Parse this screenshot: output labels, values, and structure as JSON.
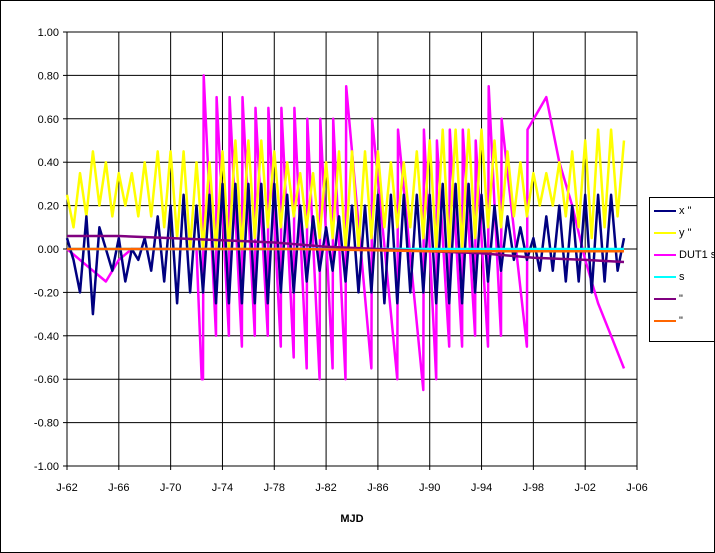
{
  "chart_data": {
    "type": "line",
    "title": "",
    "xlabel": "MJD",
    "ylabel": "",
    "x_ticks": [
      "J-62",
      "J-66",
      "J-70",
      "J-74",
      "J-78",
      "J-82",
      "J-86",
      "J-90",
      "J-94",
      "J-98",
      "J-02",
      "J-06"
    ],
    "x_range": [
      1962,
      2006
    ],
    "y_ticks": [
      "1.00",
      "0.80",
      "0.60",
      "0.40",
      "0.20",
      "0.00",
      "-0.20",
      "-0.40",
      "-0.60",
      "-0.80",
      "-1.00"
    ],
    "ylim": [
      -1.0,
      1.0
    ],
    "grid": "horizontal and vertical",
    "legend_position": "right",
    "series": [
      {
        "name": "x \"",
        "color": "#000080",
        "x": [
          1962.0,
          1962.5,
          1963.0,
          1963.5,
          1964.0,
          1964.5,
          1965.0,
          1965.5,
          1966.0,
          1966.5,
          1967.0,
          1967.5,
          1968.0,
          1968.5,
          1969.0,
          1969.5,
          1970.0,
          1970.5,
          1971.0,
          1971.5,
          1972.0,
          1972.5,
          1973.0,
          1973.5,
          1974.0,
          1974.5,
          1975.0,
          1975.5,
          1976.0,
          1976.5,
          1977.0,
          1977.5,
          1978.0,
          1978.5,
          1979.0,
          1979.5,
          1980.0,
          1980.5,
          1981.0,
          1981.5,
          1982.0,
          1982.5,
          1983.0,
          1983.5,
          1984.0,
          1984.5,
          1985.0,
          1985.5,
          1986.0,
          1986.5,
          1987.0,
          1987.5,
          1988.0,
          1988.5,
          1989.0,
          1989.5,
          1990.0,
          1990.5,
          1991.0,
          1991.5,
          1992.0,
          1992.5,
          1993.0,
          1993.5,
          1994.0,
          1994.5,
          1995.0,
          1995.5,
          1996.0,
          1996.5,
          1997.0,
          1997.5,
          1998.0,
          1998.5,
          1999.0,
          1999.5,
          2000.0,
          2000.5,
          2001.0,
          2001.5,
          2002.0,
          2002.5,
          2003.0,
          2003.5,
          2004.0,
          2004.5,
          2005.0
        ],
        "values": [
          0.05,
          -0.05,
          -0.2,
          0.15,
          -0.3,
          0.1,
          0.0,
          -0.1,
          0.05,
          -0.15,
          0.0,
          -0.05,
          0.05,
          -0.1,
          0.15,
          -0.15,
          0.2,
          -0.25,
          0.25,
          -0.2,
          0.2,
          -0.2,
          0.25,
          -0.25,
          0.3,
          -0.25,
          0.3,
          -0.25,
          0.3,
          -0.25,
          0.3,
          -0.25,
          0.3,
          -0.2,
          0.25,
          -0.2,
          0.2,
          -0.15,
          0.15,
          -0.1,
          0.1,
          -0.1,
          0.15,
          -0.15,
          0.2,
          -0.2,
          0.2,
          -0.2,
          0.25,
          -0.25,
          0.25,
          -0.25,
          0.25,
          -0.2,
          0.25,
          -0.2,
          0.25,
          -0.25,
          0.3,
          -0.25,
          0.3,
          -0.25,
          0.3,
          -0.2,
          0.25,
          -0.15,
          0.2,
          -0.1,
          0.15,
          -0.05,
          0.1,
          -0.05,
          0.05,
          -0.1,
          0.15,
          -0.1,
          0.2,
          -0.15,
          0.2,
          -0.15,
          0.25,
          -0.2,
          0.25,
          -0.15,
          0.25,
          -0.1,
          0.05
        ]
      },
      {
        "name": "y \"",
        "color": "#ffff00",
        "x": [
          1962.0,
          1962.5,
          1963.0,
          1963.5,
          1964.0,
          1964.5,
          1965.0,
          1965.5,
          1966.0,
          1966.5,
          1967.0,
          1967.5,
          1968.0,
          1968.5,
          1969.0,
          1969.5,
          1970.0,
          1970.5,
          1971.0,
          1971.5,
          1972.0,
          1972.5,
          1973.0,
          1973.5,
          1974.0,
          1974.5,
          1975.0,
          1975.5,
          1976.0,
          1976.5,
          1977.0,
          1977.5,
          1978.0,
          1978.5,
          1979.0,
          1979.5,
          1980.0,
          1980.5,
          1981.0,
          1981.5,
          1982.0,
          1982.5,
          1983.0,
          1983.5,
          1984.0,
          1984.5,
          1985.0,
          1985.5,
          1986.0,
          1986.5,
          1987.0,
          1987.5,
          1988.0,
          1988.5,
          1989.0,
          1989.5,
          1990.0,
          1990.5,
          1991.0,
          1991.5,
          1992.0,
          1992.5,
          1993.0,
          1993.5,
          1994.0,
          1994.5,
          1995.0,
          1995.5,
          1996.0,
          1996.5,
          1997.0,
          1997.5,
          1998.0,
          1998.5,
          1999.0,
          1999.5,
          2000.0,
          2000.5,
          2001.0,
          2001.5,
          2002.0,
          2002.5,
          2003.0,
          2003.5,
          2004.0,
          2004.5,
          2005.0
        ],
        "values": [
          0.25,
          0.1,
          0.35,
          0.15,
          0.45,
          0.2,
          0.4,
          0.15,
          0.35,
          0.2,
          0.35,
          0.15,
          0.4,
          0.15,
          0.45,
          0.1,
          0.45,
          0.05,
          0.45,
          0.0,
          0.4,
          0.0,
          0.4,
          0.0,
          0.45,
          0.0,
          0.5,
          0.0,
          0.5,
          0.05,
          0.5,
          0.1,
          0.45,
          0.1,
          0.4,
          0.15,
          0.35,
          0.1,
          0.35,
          0.05,
          0.4,
          0.05,
          0.45,
          0.0,
          0.45,
          0.0,
          0.45,
          0.05,
          0.45,
          0.1,
          0.4,
          0.1,
          0.4,
          0.1,
          0.45,
          0.05,
          0.5,
          0.0,
          0.55,
          0.0,
          0.55,
          0.0,
          0.55,
          0.05,
          0.55,
          0.1,
          0.5,
          0.1,
          0.45,
          0.15,
          0.4,
          0.15,
          0.35,
          0.2,
          0.35,
          0.2,
          0.4,
          0.15,
          0.45,
          0.1,
          0.5,
          0.05,
          0.55,
          0.1,
          0.55,
          0.15,
          0.5
        ]
      },
      {
        "name": "DUT1 s",
        "color": "#ff00ff",
        "x": [
          1962.0,
          1963.0,
          1964.0,
          1965.0,
          1966.0,
          1967.0,
          1968.0,
          1969.0,
          1970.0,
          1971.0,
          1972.0,
          1972.4,
          1972.5,
          1972.55,
          1973.5,
          1973.55,
          1974.5,
          1974.55,
          1975.5,
          1975.55,
          1976.5,
          1976.55,
          1977.5,
          1977.55,
          1978.5,
          1978.55,
          1979.5,
          1979.55,
          1980.5,
          1980.55,
          1981.5,
          1981.55,
          1982.5,
          1982.55,
          1983.5,
          1983.55,
          1985.5,
          1985.55,
          1987.5,
          1987.55,
          1989.5,
          1989.55,
          1990.5,
          1990.55,
          1991.5,
          1991.55,
          1992.5,
          1992.55,
          1993.5,
          1993.55,
          1994.5,
          1994.55,
          1995.5,
          1995.55,
          1997.5,
          1997.55,
          1999.0,
          1999.5,
          2000.0,
          2001.0,
          2002.0,
          2003.0,
          2004.0,
          2005.0
        ],
        "values": [
          0.0,
          -0.05,
          -0.1,
          -0.15,
          -0.05,
          0.0,
          0.0,
          0.0,
          0.0,
          0.0,
          0.0,
          -0.6,
          -0.6,
          0.8,
          -0.4,
          0.7,
          -0.4,
          0.7,
          -0.45,
          0.7,
          -0.4,
          0.65,
          -0.4,
          0.65,
          -0.45,
          0.65,
          -0.5,
          0.65,
          -0.55,
          0.6,
          -0.6,
          0.6,
          -0.55,
          0.6,
          -0.6,
          0.75,
          -0.55,
          0.6,
          -0.6,
          0.55,
          -0.65,
          0.55,
          -0.6,
          0.5,
          -0.45,
          0.55,
          -0.45,
          0.55,
          -0.4,
          0.5,
          -0.45,
          0.75,
          -0.4,
          0.6,
          -0.45,
          0.55,
          0.7,
          0.55,
          0.4,
          0.2,
          -0.05,
          -0.25,
          -0.4,
          -0.55
        ]
      },
      {
        "name": "s",
        "color": "#00ffff",
        "x": [
          1962.0,
          1970.0,
          1980.0,
          1990.0,
          2000.0,
          2005.0
        ],
        "values": [
          0.0,
          0.0,
          0.0,
          0.0,
          0.0,
          0.0
        ]
      },
      {
        "name": "\"",
        "color": "#800080",
        "x": [
          1962.0,
          1966.0,
          1970.0,
          1974.0,
          1978.0,
          1982.0,
          1986.0,
          1990.0,
          1994.0,
          1998.0,
          2002.0,
          2005.0
        ],
        "values": [
          0.06,
          0.06,
          0.05,
          0.04,
          0.03,
          0.01,
          0.0,
          -0.01,
          -0.02,
          -0.04,
          -0.05,
          -0.06
        ]
      },
      {
        "name": "\"",
        "color": "#ff6600",
        "x": [
          1962.0,
          1970.0,
          1980.0,
          1990.0,
          2000.0,
          2005.0
        ],
        "values": [
          0.0,
          0.0,
          0.0,
          -0.01,
          -0.01,
          -0.01
        ]
      }
    ]
  }
}
